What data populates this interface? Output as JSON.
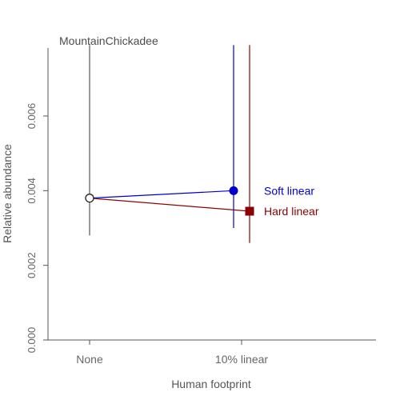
{
  "chart_data": {
    "type": "line",
    "title": "MountainChickadee",
    "xlabel": "Human footprint",
    "ylabel": "Relative abundance",
    "categories": [
      "None",
      "10% linear"
    ],
    "y_ticks": [
      "0.000",
      "0.002",
      "0.004",
      "0.006"
    ],
    "ylim": [
      0,
      0.0079
    ],
    "grid": false,
    "reference": {
      "category": "None",
      "value": 0.0038,
      "ci": [
        0.0028,
        0.0079
      ]
    },
    "series": [
      {
        "name": "Soft linear",
        "color": "#0000cc",
        "marker": "circle",
        "points": [
          {
            "x": "None",
            "y": 0.0038
          },
          {
            "x": "10% linear",
            "y": 0.004,
            "ci": [
              0.003,
              0.0079
            ]
          }
        ]
      },
      {
        "name": "Hard linear",
        "color": "#8b0000",
        "marker": "square",
        "points": [
          {
            "x": "None",
            "y": 0.0038
          },
          {
            "x": "10% linear",
            "y": 0.00345,
            "ci": [
              0.0026,
              0.0079
            ]
          }
        ]
      }
    ]
  }
}
